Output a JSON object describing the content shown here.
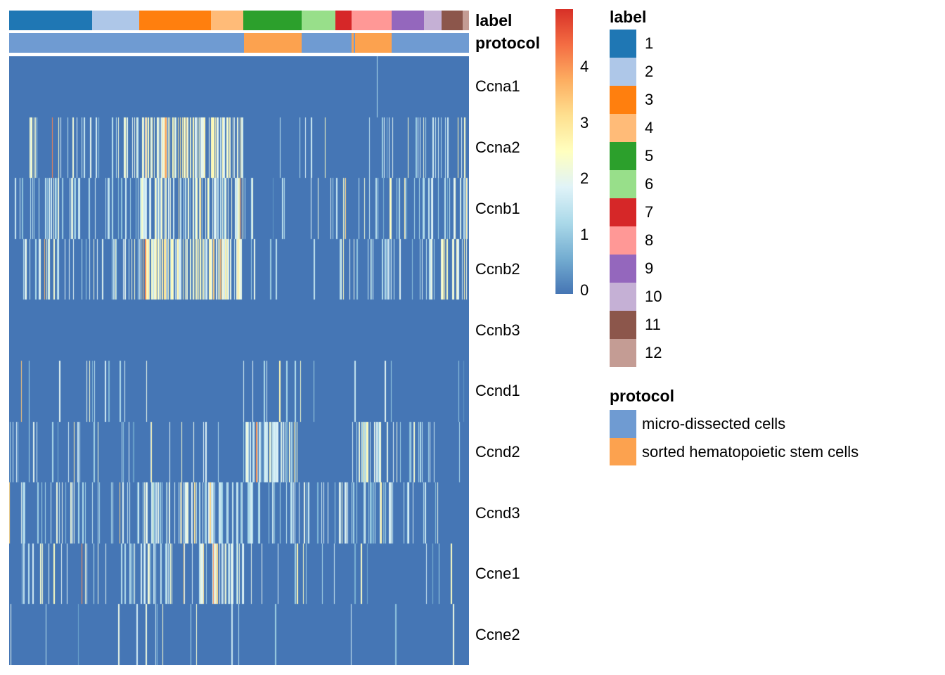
{
  "figure_background": "#ffffff",
  "annotation_titles": {
    "label": "label",
    "protocol": "protocol"
  },
  "chart_data": {
    "type": "heatmap",
    "description": "Single-cell gene expression heatmap (cells as columns, cyclin genes as rows) with cluster label and protocol column annotations",
    "genes": [
      "Ccna1",
      "Ccna2",
      "Ccnb1",
      "Ccnb2",
      "Ccnb3",
      "Ccnd1",
      "Ccnd2",
      "Ccnd3",
      "Ccne1",
      "Ccne2"
    ],
    "background_color": "#4576b5",
    "value_scale": {
      "min": 0,
      "max": 5,
      "ticks": [
        4,
        3,
        2,
        1,
        0
      ],
      "colormap": "RdYlBu reversed (low=blue, high=red)",
      "stops_low_to_high": [
        "#4575b4",
        "#74add1",
        "#abd9e9",
        "#e0f3f8",
        "#ffffbf",
        "#fee090",
        "#fdae61",
        "#f46d43",
        "#d73027"
      ]
    },
    "label_clusters": [
      {
        "id": "1",
        "color": "#1f77b4",
        "x_start_frac": 0.0,
        "x_end_frac": 0.1804
      },
      {
        "id": "2",
        "color": "#aec7e8",
        "x_start_frac": 0.1804,
        "x_end_frac": 0.2829
      },
      {
        "id": "3",
        "color": "#ff7f0e",
        "x_start_frac": 0.2829,
        "x_end_frac": 0.4388
      },
      {
        "id": "4",
        "color": "#ffbb78",
        "x_start_frac": 0.4388,
        "x_end_frac": 0.5092
      },
      {
        "id": "5",
        "color": "#2ca02c",
        "x_start_frac": 0.5092,
        "x_end_frac": 0.6361
      },
      {
        "id": "6",
        "color": "#98df8a",
        "x_start_frac": 0.6361,
        "x_end_frac": 0.7095
      },
      {
        "id": "7",
        "color": "#d62728",
        "x_start_frac": 0.7095,
        "x_end_frac": 0.7446
      },
      {
        "id": "8",
        "color": "#ff9896",
        "x_start_frac": 0.7446,
        "x_end_frac": 0.8318
      },
      {
        "id": "9",
        "color": "#9467bd",
        "x_start_frac": 0.8318,
        "x_end_frac": 0.9021
      },
      {
        "id": "10",
        "color": "#c5b0d5",
        "x_start_frac": 0.9021,
        "x_end_frac": 0.9404
      },
      {
        "id": "11",
        "color": "#8c564b",
        "x_start_frac": 0.9404,
        "x_end_frac": 0.9862
      },
      {
        "id": "12",
        "color": "#c49c94",
        "x_start_frac": 0.9862,
        "x_end_frac": 1.0
      }
    ],
    "protocol_colors": {
      "micro-dissected cells": "#6f9bd2",
      "sorted hematopoietic stem cells": "#fca24f"
    },
    "protocol_segments": [
      {
        "protocol": "micro-dissected cells",
        "x_start_frac": 0.0,
        "x_end_frac": 0.5107
      },
      {
        "protocol": "sorted hematopoietic stem cells",
        "x_start_frac": 0.5107,
        "x_end_frac": 0.6361
      },
      {
        "protocol": "micro-dissected cells",
        "x_start_frac": 0.6361,
        "x_end_frac": 0.7446
      },
      {
        "protocol": "sorted hematopoietic stem cells",
        "x_start_frac": 0.7446,
        "x_end_frac": 0.7492
      },
      {
        "protocol": "micro-dissected cells",
        "x_start_frac": 0.7492,
        "x_end_frac": 0.7523
      },
      {
        "protocol": "sorted hematopoietic stem cells",
        "x_start_frac": 0.7523,
        "x_end_frac": 0.8318
      },
      {
        "protocol": "micro-dissected cells",
        "x_start_frac": 0.8318,
        "x_end_frac": 1.0
      }
    ],
    "expression_by_cluster": {
      "note": "per gene row: fraction of expressing cells (streak density) and mean log-expression of expressing cells, per label cluster 1-12; non-expressing cells are 0 (solid blue)",
      "rows": [
        {
          "gene": "Ccna1",
          "density": [
            0,
            0,
            0,
            0,
            0,
            0,
            0,
            0,
            0,
            0,
            0,
            0
          ],
          "mean": [
            0,
            0,
            0,
            0,
            0,
            0,
            0,
            0,
            0,
            0,
            0,
            0
          ]
        },
        {
          "gene": "Ccna2",
          "density": [
            0.15,
            0.28,
            0.55,
            0.5,
            0.05,
            0.08,
            0.15,
            0.12,
            0.15,
            0.3,
            0.2,
            0.15
          ],
          "mean": [
            2.0,
            1.8,
            2.4,
            2.2,
            1.5,
            1.8,
            1.5,
            1.5,
            1.8,
            1.6,
            1.8,
            1.5
          ]
        },
        {
          "gene": "Ccnb1",
          "density": [
            0.18,
            0.22,
            0.4,
            0.45,
            0.04,
            0.06,
            0.2,
            0.15,
            0.18,
            0.35,
            0.25,
            0.3
          ],
          "mean": [
            1.5,
            1.5,
            1.8,
            1.8,
            1.2,
            1.5,
            1.5,
            1.4,
            1.5,
            1.5,
            1.5,
            1.6
          ]
        },
        {
          "gene": "Ccnb2",
          "density": [
            0.22,
            0.25,
            0.55,
            0.6,
            0.05,
            0.1,
            0.18,
            0.12,
            0.15,
            0.3,
            0.25,
            0.3
          ],
          "mean": [
            1.8,
            1.7,
            2.3,
            2.4,
            1.5,
            1.6,
            1.5,
            1.5,
            1.6,
            1.7,
            2.2,
            2.5
          ]
        },
        {
          "gene": "Ccnb3",
          "density": [
            0,
            0,
            0,
            0,
            0,
            0,
            0,
            0,
            0,
            0,
            0,
            0
          ],
          "mean": [
            0,
            0,
            0,
            0,
            0,
            0,
            0,
            0,
            0,
            0,
            0,
            0
          ]
        },
        {
          "gene": "Ccnd1",
          "density": [
            0.06,
            0.04,
            0.03,
            0.01,
            0.1,
            0.02,
            0.03,
            0.08,
            0.03,
            0.02,
            0.02,
            0.02
          ],
          "mean": [
            1.9,
            1.3,
            1.6,
            1.0,
            1.4,
            1.2,
            1.3,
            1.7,
            1.3,
            1.0,
            1.0,
            1.0
          ]
        },
        {
          "gene": "Ccnd2",
          "density": [
            0.13,
            0.1,
            0.08,
            0.06,
            0.6,
            0.03,
            0.08,
            0.45,
            0.18,
            0.15,
            0.06,
            0.03
          ],
          "mean": [
            1.6,
            1.5,
            1.7,
            1.5,
            1.7,
            1.0,
            2.2,
            1.7,
            1.6,
            1.4,
            1.2,
            1.0
          ]
        },
        {
          "gene": "Ccnd3",
          "density": [
            0.18,
            0.2,
            0.3,
            0.3,
            0.22,
            0.3,
            0.35,
            0.3,
            0.12,
            0.25,
            0.1,
            0.05
          ],
          "mean": [
            1.5,
            1.4,
            1.5,
            1.5,
            1.5,
            1.5,
            1.6,
            1.5,
            1.4,
            1.5,
            1.3,
            1.2
          ]
        },
        {
          "gene": "Ccne1",
          "density": [
            0.1,
            0.12,
            0.3,
            0.45,
            0.03,
            0.08,
            0.05,
            0.02,
            0.02,
            0.12,
            0.05,
            0.08
          ],
          "mean": [
            1.8,
            1.5,
            1.6,
            1.7,
            1.8,
            1.4,
            1.3,
            1.0,
            1.2,
            1.4,
            1.5,
            2.5
          ]
        },
        {
          "gene": "Ccne2",
          "density": [
            0.02,
            0.03,
            0.04,
            0.05,
            0.01,
            0.0,
            0.02,
            0.02,
            0.03,
            0.04,
            0.02,
            0.05
          ],
          "mean": [
            1.3,
            1.2,
            1.5,
            1.6,
            1.0,
            0.0,
            1.2,
            1.2,
            1.3,
            1.3,
            1.0,
            1.5
          ]
        }
      ],
      "single_streaks": [
        {
          "gene": "Ccna1",
          "x_frac": 0.8,
          "value": 1.3
        }
      ]
    },
    "colorbar_tick_labels": [
      "4",
      "3",
      "2",
      "1",
      "0"
    ],
    "legend": {
      "label_title": "label",
      "label_items": [
        {
          "label": "1",
          "color": "#1f77b4"
        },
        {
          "label": "2",
          "color": "#aec7e8"
        },
        {
          "label": "3",
          "color": "#ff7f0e"
        },
        {
          "label": "4",
          "color": "#ffbb78"
        },
        {
          "label": "5",
          "color": "#2ca02c"
        },
        {
          "label": "6",
          "color": "#98df8a"
        },
        {
          "label": "7",
          "color": "#d62728"
        },
        {
          "label": "8",
          "color": "#ff9896"
        },
        {
          "label": "9",
          "color": "#9467bd"
        },
        {
          "label": "10",
          "color": "#c5b0d5"
        },
        {
          "label": "11",
          "color": "#8c564b"
        },
        {
          "label": "12",
          "color": "#c49c94"
        }
      ],
      "protocol_title": "protocol",
      "protocol_items": [
        {
          "label": "micro-dissected cells",
          "color": "#6f9bd2"
        },
        {
          "label": "sorted hematopoietic stem cells",
          "color": "#fca24f"
        }
      ]
    }
  }
}
